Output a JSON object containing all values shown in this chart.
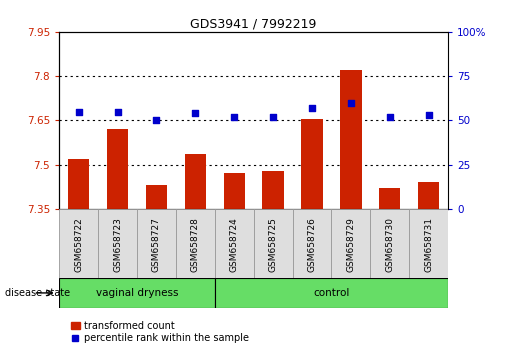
{
  "title": "GDS3941 / 7992219",
  "samples": [
    "GSM658722",
    "GSM658723",
    "GSM658727",
    "GSM658728",
    "GSM658724",
    "GSM658725",
    "GSM658726",
    "GSM658729",
    "GSM658730",
    "GSM658731"
  ],
  "transformed_count": [
    7.52,
    7.62,
    7.43,
    7.535,
    7.47,
    7.48,
    7.655,
    7.82,
    7.42,
    7.44
  ],
  "percentile_rank": [
    55,
    55,
    50,
    54,
    52,
    52,
    57,
    60,
    52,
    53
  ],
  "ylim_left": [
    7.35,
    7.95
  ],
  "ylim_right": [
    0,
    100
  ],
  "yticks_left": [
    7.35,
    7.5,
    7.65,
    7.8,
    7.95
  ],
  "yticks_right": [
    0,
    25,
    50,
    75,
    100
  ],
  "ytick_labels_left": [
    "7.35",
    "7.5",
    "7.65",
    "7.8",
    "7.95"
  ],
  "ytick_labels_right": [
    "0",
    "25",
    "50",
    "75",
    "100%"
  ],
  "bar_color": "#cc2200",
  "dot_color": "#0000cc",
  "vaginal_group_count": 4,
  "control_group_count": 6,
  "group_label_vaginal": "vaginal dryness",
  "group_label_control": "control",
  "group_color": "#66dd66",
  "legend_bar_label": "transformed count",
  "legend_dot_label": "percentile rank within the sample",
  "disease_state_label": "disease state",
  "bar_baseline": 7.35,
  "grid_yticks": [
    7.5,
    7.65,
    7.8
  ]
}
